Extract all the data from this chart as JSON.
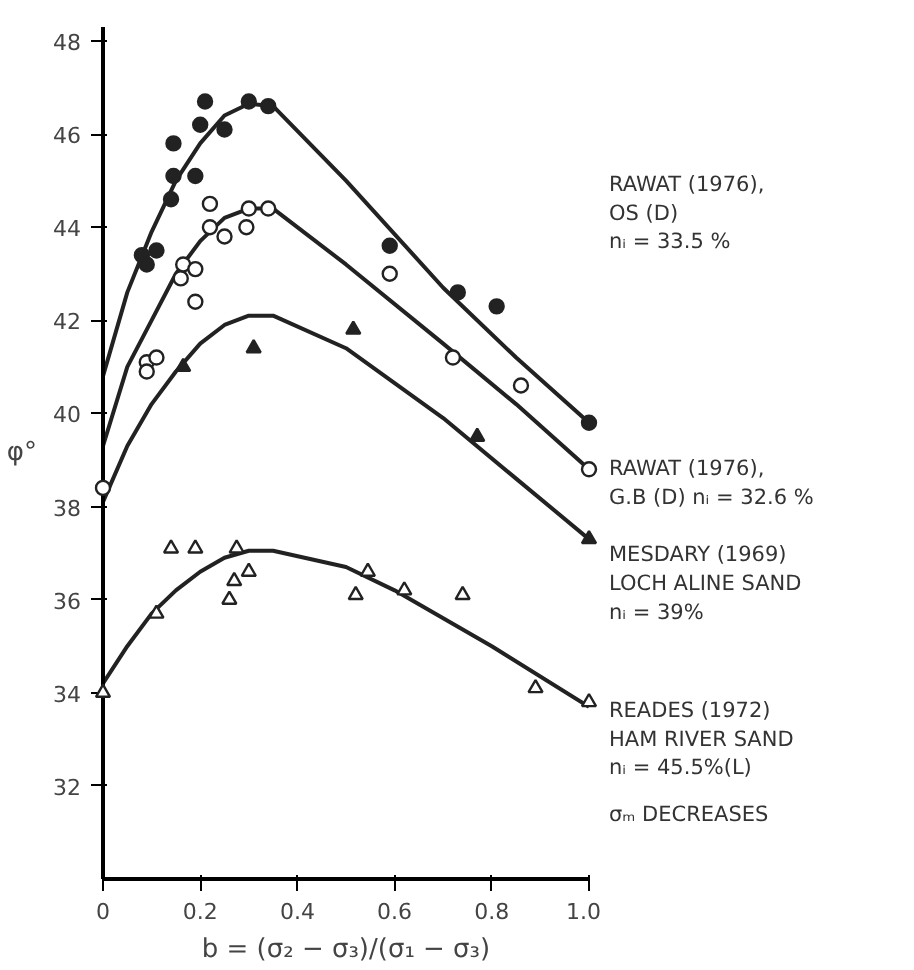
{
  "chart_data": {
    "type": "scatter",
    "xlabel": "b = (σ₂ − σ₃)/(σ₁ − σ₃)",
    "ylabel": "φ°",
    "xlim": [
      0,
      1.0
    ],
    "ylim": [
      30,
      48.3
    ],
    "xticks": [
      0,
      0.2,
      0.4,
      0.6,
      0.8,
      {
        "value": 1.0,
        "label": "1.0"
      }
    ],
    "yticks": [
      32,
      34,
      36,
      38,
      40,
      42,
      44,
      46,
      48
    ],
    "grid": false,
    "series": [
      {
        "marker": "circle",
        "color": "#222222",
        "x": [
          0.08,
          0.11,
          0.09,
          0.14,
          0.145,
          0.145,
          0.19,
          0.21,
          0.2,
          0.25,
          0.3,
          0.34,
          0.59,
          0.73,
          0.81,
          1.0
        ],
        "values": [
          43.4,
          43.5,
          43.2,
          44.6,
          45.1,
          45.8,
          45.1,
          46.7,
          46.2,
          46.1,
          46.7,
          46.6,
          43.6,
          42.6,
          42.3,
          39.8
        ]
      },
      {
        "marker": "circle",
        "color": "#ffffff",
        "x": [
          0,
          0.09,
          0.11,
          0.09,
          0.16,
          0.165,
          0.19,
          0.19,
          0.22,
          0.22,
          0.25,
          0.3,
          0.295,
          0.34,
          0.59,
          0.72,
          0.86,
          1.0
        ],
        "values": [
          38.4,
          41.1,
          41.2,
          40.9,
          42.9,
          43.2,
          43.1,
          42.4,
          44.5,
          44.0,
          43.8,
          44.4,
          44.0,
          44.4,
          43.0,
          41.2,
          40.6,
          38.8
        ]
      },
      {
        "marker": "triangle",
        "color": "#222222",
        "x": [
          0.165,
          0.31,
          0.515,
          0.77,
          1.0
        ],
        "values": [
          41.0,
          41.4,
          41.8,
          39.5,
          37.3
        ]
      },
      {
        "marker": "triangle",
        "color": "#ffffff",
        "x": [
          0,
          0.11,
          0.14,
          0.19,
          0.275,
          0.27,
          0.26,
          0.3,
          0.52,
          0.545,
          0.62,
          0.74,
          0.89,
          1.0
        ],
        "values": [
          34.0,
          35.7,
          37.1,
          37.1,
          37.1,
          36.4,
          36.0,
          36.6,
          36.1,
          36.6,
          36.2,
          36.1,
          34.1,
          33.8
        ]
      },
      {
        "type": "line",
        "color": "#222222",
        "x": [
          0,
          0.05,
          0.1,
          0.15,
          0.2,
          0.25,
          0.3,
          0.35,
          0.5,
          0.7,
          0.85,
          1.0
        ],
        "values": [
          40.8,
          42.6,
          43.9,
          45.0,
          45.8,
          46.4,
          46.65,
          46.6,
          45.0,
          42.7,
          41.2,
          39.8
        ]
      },
      {
        "type": "line",
        "color": "#222222",
        "x": [
          0,
          0.05,
          0.1,
          0.15,
          0.2,
          0.25,
          0.3,
          0.35,
          0.5,
          0.7,
          0.85,
          1.0
        ],
        "values": [
          39.3,
          41.0,
          42.0,
          43.0,
          43.7,
          44.2,
          44.4,
          44.4,
          43.2,
          41.5,
          40.2,
          38.8
        ]
      },
      {
        "type": "line",
        "color": "#222222",
        "x": [
          0,
          0.05,
          0.1,
          0.15,
          0.2,
          0.25,
          0.3,
          0.35,
          0.5,
          0.7,
          0.85,
          1.0
        ],
        "values": [
          38.1,
          39.3,
          40.2,
          40.9,
          41.5,
          41.9,
          42.1,
          42.1,
          41.4,
          39.9,
          38.6,
          37.3
        ]
      },
      {
        "type": "line",
        "color": "#222222",
        "x": [
          0,
          0.05,
          0.1,
          0.15,
          0.2,
          0.25,
          0.3,
          0.35,
          0.5,
          0.6,
          0.8,
          1.0
        ],
        "values": [
          34.2,
          35.0,
          35.7,
          36.2,
          36.6,
          36.9,
          37.05,
          37.05,
          36.7,
          36.2,
          35.0,
          33.7
        ]
      }
    ],
    "annotations": [
      "RAWAT (1976),\n OS (D)\n    nᵢ = 33.5 %",
      "RAWAT (1976),\nG.B (D) nᵢ = 32.6 %",
      "MESDARY (1969)\nLOCH ALINE SAND\n     nᵢ = 39%",
      "READES (1972)\nHAM RIVER SAND\n     nᵢ = 45.5%(L)",
      "σₘ DECREASES"
    ]
  }
}
